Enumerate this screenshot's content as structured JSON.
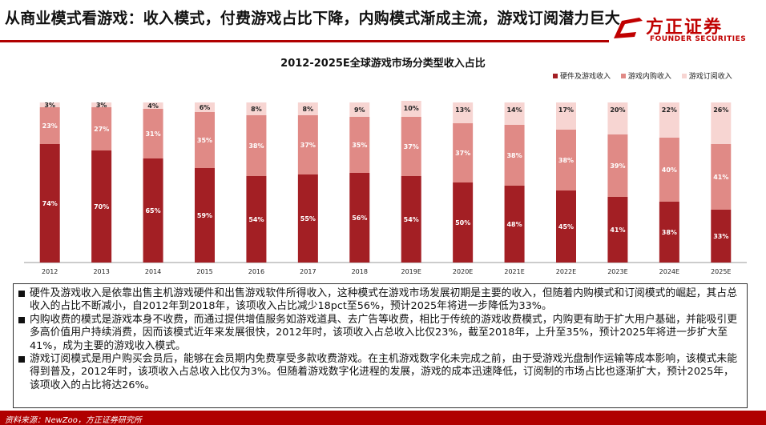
{
  "header": {
    "title": "从商业模式看游戏：收入模式，付费游戏占比下降，内购模式渐成主流，游戏订阅潜力巨大",
    "logo_cn": "方正证券",
    "logo_en": "FOUNDER SECURITIES",
    "brand_color": "#c00000"
  },
  "chart_data": {
    "type": "bar",
    "stacked": true,
    "title": "2012-2025E全球游戏市场分类型收入占比",
    "legend_position": "top-right",
    "grid": false,
    "categories": [
      "2012",
      "2013",
      "2014",
      "2015",
      "2016",
      "2017",
      "2018",
      "2019E",
      "2020E",
      "2021E",
      "2022E",
      "2023E",
      "2024E",
      "2025E"
    ],
    "series": [
      {
        "name": "硬件及游戏收入",
        "color": "#a31f24",
        "values": [
          74,
          70,
          65,
          59,
          54,
          55,
          56,
          54,
          50,
          48,
          45,
          41,
          38,
          33
        ]
      },
      {
        "name": "游戏内购收入",
        "color": "#e08a86",
        "values": [
          23,
          27,
          31,
          35,
          38,
          37,
          35,
          37,
          37,
          38,
          38,
          39,
          40,
          41
        ]
      },
      {
        "name": "游戏订阅收入",
        "color": "#f7d5d2",
        "values": [
          3,
          3,
          4,
          6,
          8,
          8,
          9,
          10,
          13,
          14,
          17,
          20,
          22,
          26
        ]
      }
    ],
    "ylim": [
      0,
      100
    ]
  },
  "notes": [
    "硬件及游戏收入是依靠出售主机游戏硬件和出售游戏软件所得收入，这种模式在游戏市场发展初期是主要的收入，但随着内购模式和订阅模式的崛起，其占总收入的占比不断减小，自2012年到2018年，该项收入占比减少18pct至56%，预计2025年将进一步降低为33%。",
    "内购收费的模式是游戏本身不收费，而通过提供增值服务如游戏道具、去广告等收费，相比于传统的游戏收费模式，内购更有助于扩大用户基础，并能吸引更多高价值用户持续消费，因而该模式近年来发展很快，2012年时，该项收入占总收入比仅23%，截至2018年，上升至35%，预计2025年将进一步扩大至41%，成为主要的游戏收入模式。",
    "游戏订阅模式是用户购买会员后，能够在会员期内免费享受多款收费游戏。在主机游戏数字化未完成之前，由于受游戏光盘制作运输等成本影响，该模式未能得到普及，2012年时，该项收入占总收入比仅为3%。但随着游戏数字化进程的发展，游戏的成本迅速降低，订阅制的市场占比也逐渐扩大，预计2025年，该项收入的占比将达26%。"
  ],
  "source": "资料来源：NewZoo，方正证券研究所"
}
